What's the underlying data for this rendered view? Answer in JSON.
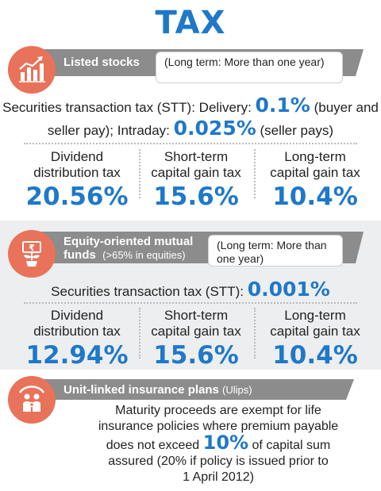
{
  "title": "TAX",
  "colors": {
    "accent": "#1f78c8",
    "icon_bg": "#e8735a",
    "header_bar": "#8c8c8c",
    "band_bg": "#eceeef"
  },
  "listed_stocks": {
    "icon": "rising-bar-chart-icon",
    "header": "Listed stocks",
    "note": "(Long term: More than one year)",
    "stt_prefix": "Securities transaction tax (STT): Delivery: ",
    "stt_delivery": "0.1%",
    "stt_delivery_suffix": " (buyer and",
    "stt_line2_prefix": "seller pay); Intraday: ",
    "stt_intraday": "0.025%",
    "stt_intraday_suffix": " (seller pays)",
    "columns": [
      {
        "label_1": "Dividend",
        "label_2": "distribution tax",
        "value": "20.56%"
      },
      {
        "label_1": "Short-term",
        "label_2": "capital gain tax",
        "value": "15.6%"
      },
      {
        "label_1": "Long-term",
        "label_2": "capital gain tax",
        "value": "10.4%"
      }
    ]
  },
  "mutual_funds": {
    "icon": "rupee-note-plant-icon",
    "header_line1": "Equity-oriented mutual",
    "header_line2": "funds",
    "header_sub": "(>65% in equities)",
    "note": "(Long term: More than one year)",
    "stt_prefix": "Securities transaction tax (STT): ",
    "stt_value": "0.001%",
    "columns": [
      {
        "label_1": "Dividend",
        "label_2": "distribution tax",
        "value": "12.94%"
      },
      {
        "label_1": "Short-term",
        "label_2": "capital gain tax",
        "value": "15.6%"
      },
      {
        "label_1": "Long-term",
        "label_2": "capital gain tax",
        "value": "10.4%"
      }
    ]
  },
  "ulips": {
    "icon": "family-umbrella-icon",
    "header": "Unit-linked insurance plans",
    "header_sub": "(Ulips)",
    "line1": "Maturity proceeds are exempt for life",
    "line2": "insurance policies where premium payable",
    "line3_prefix": "does not exceed ",
    "line3_value": "10%",
    "line3_suffix": " of capital sum",
    "line4": "assured (20% if policy is issued prior to",
    "line5": "1 April 2012)"
  }
}
